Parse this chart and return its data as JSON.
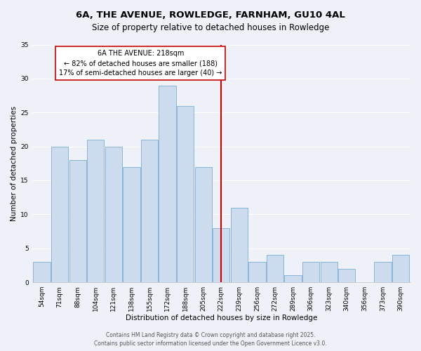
{
  "title": "6A, THE AVENUE, ROWLEDGE, FARNHAM, GU10 4AL",
  "subtitle": "Size of property relative to detached houses in Rowledge",
  "xlabel": "Distribution of detached houses by size in Rowledge",
  "ylabel": "Number of detached properties",
  "categories": [
    "54sqm",
    "71sqm",
    "88sqm",
    "104sqm",
    "121sqm",
    "138sqm",
    "155sqm",
    "172sqm",
    "188sqm",
    "205sqm",
    "222sqm",
    "239sqm",
    "256sqm",
    "272sqm",
    "289sqm",
    "306sqm",
    "323sqm",
    "340sqm",
    "356sqm",
    "373sqm",
    "390sqm"
  ],
  "values": [
    3,
    20,
    18,
    21,
    20,
    17,
    21,
    29,
    26,
    17,
    8,
    11,
    3,
    4,
    1,
    3,
    3,
    2,
    0,
    3,
    4
  ],
  "bar_color": "#ccdcee",
  "bar_edge_color": "#7bafd4",
  "vline_color": "#cc0000",
  "vline_pos": 10.5,
  "ylim": [
    0,
    35
  ],
  "yticks": [
    0,
    5,
    10,
    15,
    20,
    25,
    30,
    35
  ],
  "annotation_title": "6A THE AVENUE: 218sqm",
  "annotation_line1": "← 82% of detached houses are smaller (188)",
  "annotation_line2": "17% of semi-detached houses are larger (40) →",
  "annotation_box_color": "#ffffff",
  "annotation_box_edge": "#cc0000",
  "background_color": "#eef2f8",
  "grid_color": "#ffffff",
  "footer1": "Contains HM Land Registry data © Crown copyright and database right 2025.",
  "footer2": "Contains public sector information licensed under the Open Government Licence v3.0.",
  "title_fontsize": 9.5,
  "subtitle_fontsize": 8.5,
  "axis_label_fontsize": 7.5,
  "tick_fontsize": 6.5,
  "annotation_fontsize": 7,
  "footer_fontsize": 5.5
}
